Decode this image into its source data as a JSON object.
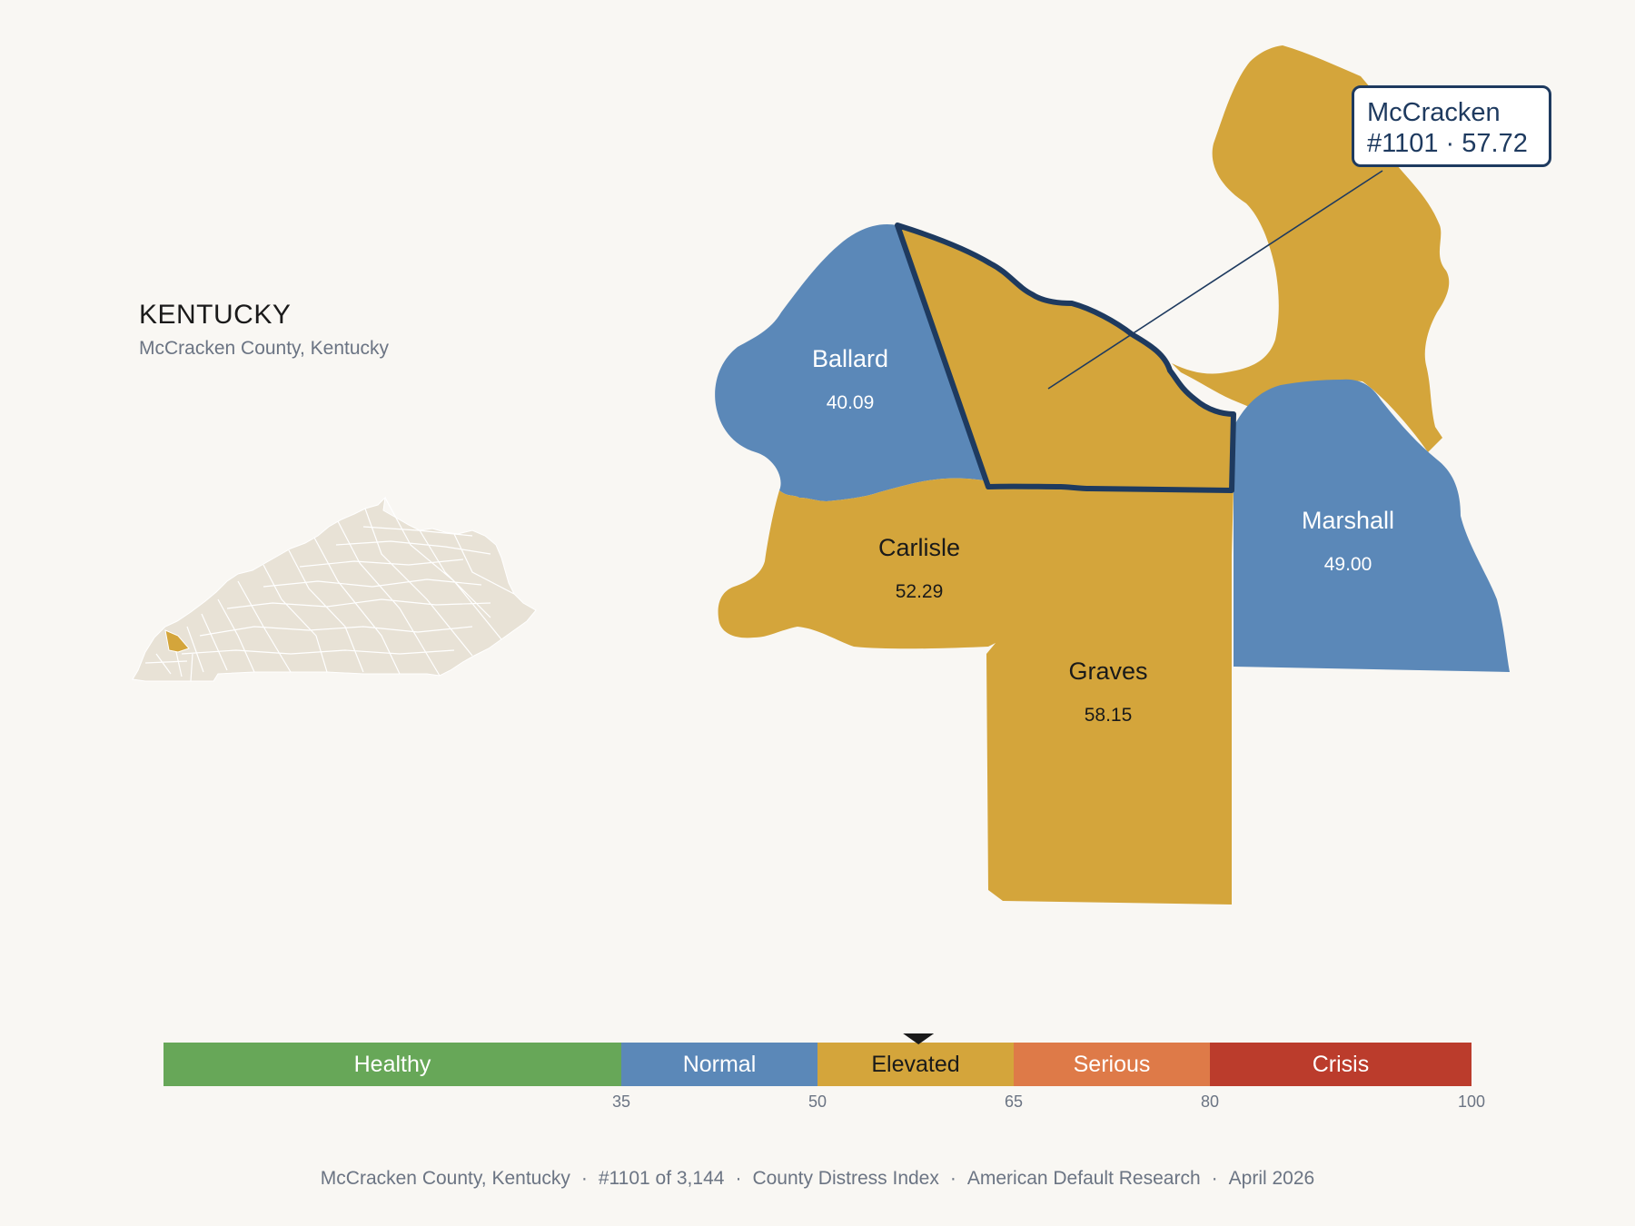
{
  "header": {
    "state": "KENTUCKY",
    "subtitle": "McCracken County, Kentucky"
  },
  "callout": {
    "name": "McCracken",
    "detail": "#1101 · 57.72"
  },
  "counties": [
    {
      "id": "mccracken",
      "name": "McCracken",
      "value": 57.72,
      "category": "Elevated",
      "highlighted": true
    },
    {
      "id": "ballard",
      "name": "Ballard",
      "value_label": "40.09",
      "value": 40.09,
      "category": "Normal"
    },
    {
      "id": "carlisle",
      "name": "Carlisle",
      "value_label": "52.29",
      "value": 52.29,
      "category": "Elevated"
    },
    {
      "id": "graves",
      "name": "Graves",
      "value_label": "58.15",
      "value": 58.15,
      "category": "Elevated"
    },
    {
      "id": "marshall",
      "name": "Marshall",
      "value_label": "49.00",
      "value": 49.0,
      "category": "Normal"
    },
    {
      "id": "livingston",
      "name": "",
      "category": "Elevated"
    }
  ],
  "scale": {
    "min": 0,
    "max": 100,
    "marker_value": 57.72,
    "bands": [
      {
        "label": "Healthy",
        "from": 0,
        "to": 35,
        "color": "#67a758",
        "text_color": "#ffffff"
      },
      {
        "label": "Normal",
        "from": 35,
        "to": 50,
        "color": "#5b88b8",
        "text_color": "#ffffff"
      },
      {
        "label": "Elevated",
        "from": 50,
        "to": 65,
        "color": "#d4a53b",
        "text_color": "#1a1a1a"
      },
      {
        "label": "Serious",
        "from": 65,
        "to": 80,
        "color": "#de7a48",
        "text_color": "#ffffff"
      },
      {
        "label": "Crisis",
        "from": 80,
        "to": 100,
        "color": "#bb3c2c",
        "text_color": "#ffffff"
      }
    ],
    "ticks": [
      "35",
      "50",
      "65",
      "80",
      "100"
    ]
  },
  "colors": {
    "normal": "#5b88b8",
    "elevated": "#d4a53b",
    "highlight_stroke": "#1e3a5f",
    "inset_fill": "#e8e2d6",
    "inset_highlight": "#d4a53b"
  },
  "footer": {
    "county": "McCracken County, Kentucky",
    "rank": "#1101 of 3,144",
    "index": "County Distress Index",
    "source": "American Default Research",
    "date": "April 2026"
  }
}
